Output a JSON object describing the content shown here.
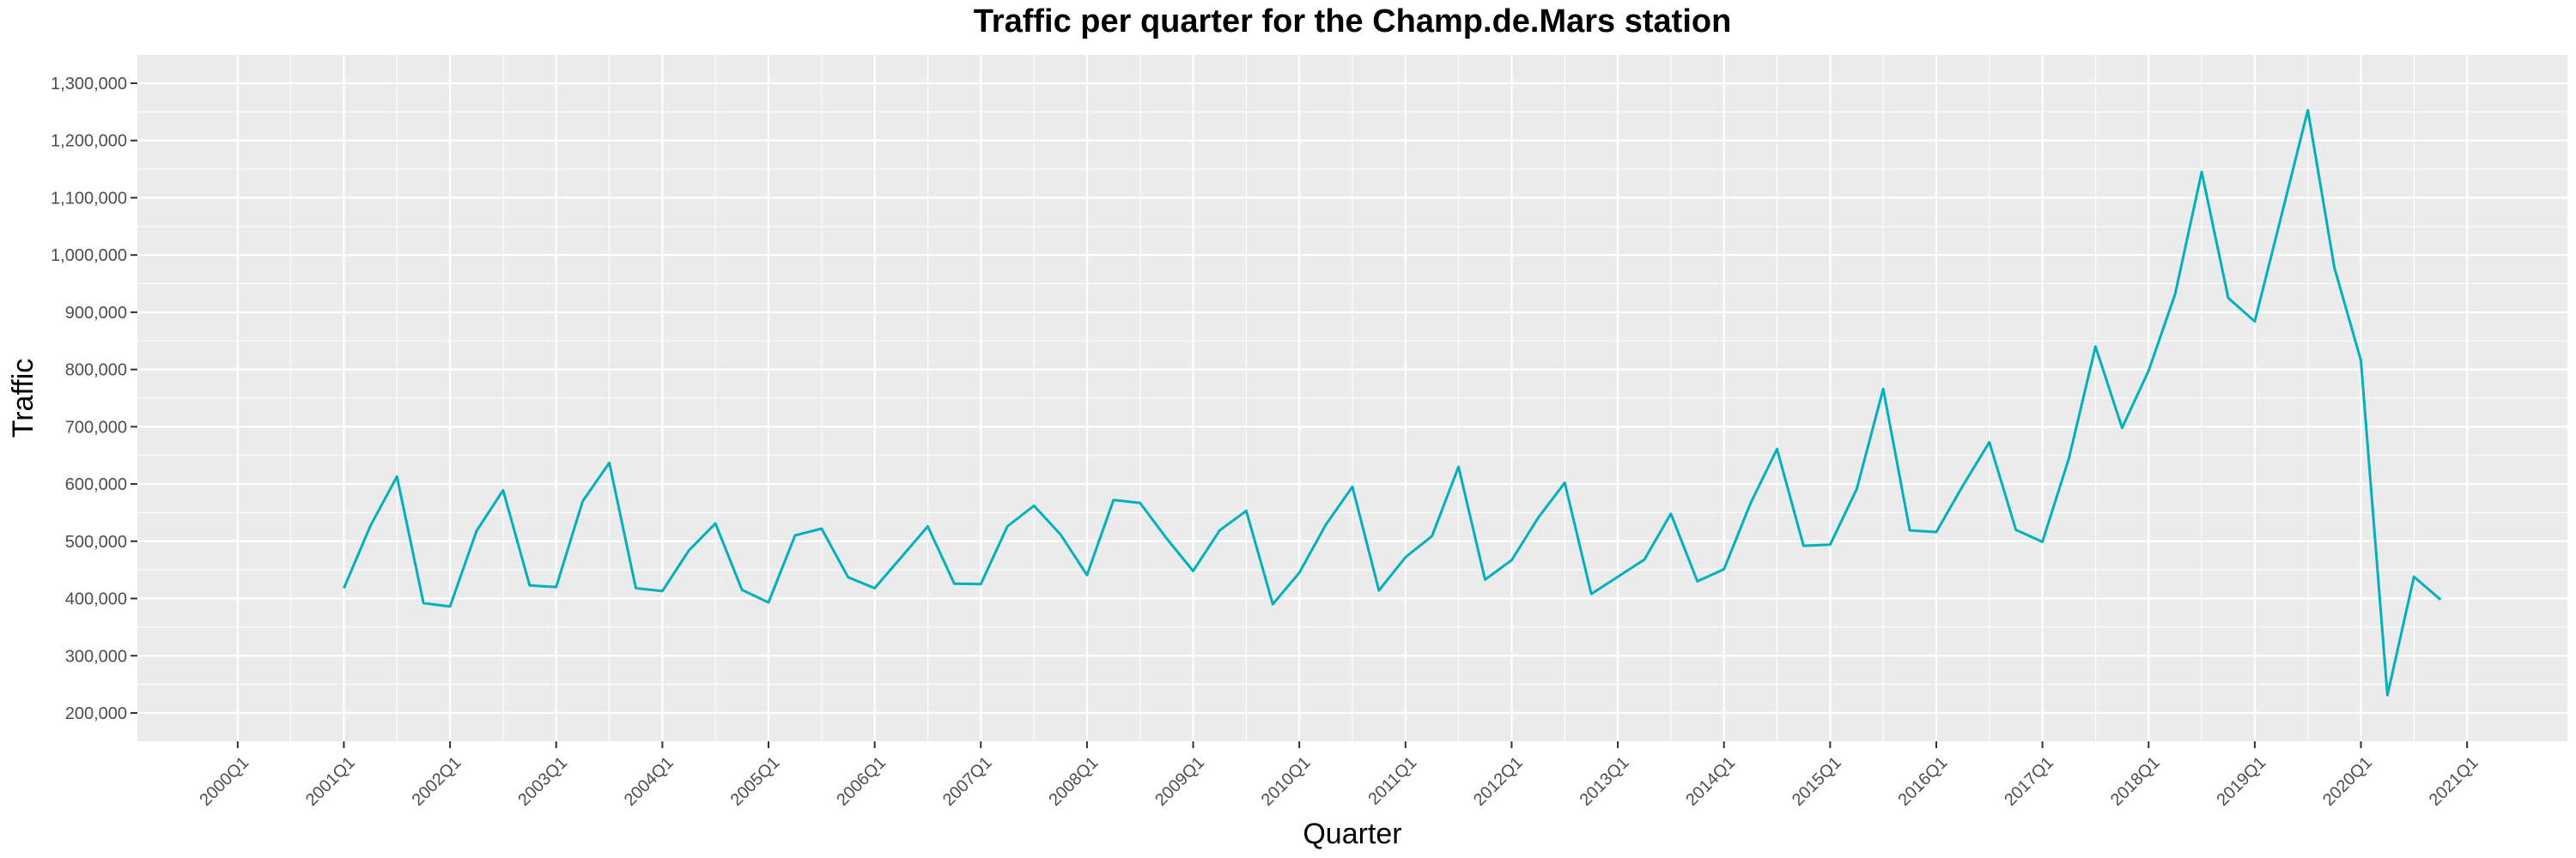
{
  "chart_data": {
    "type": "line",
    "title": "Traffic per quarter for the Champ.de.Mars station",
    "xlabel": "Quarter",
    "ylabel": "Traffic",
    "ylim": [
      200000,
      1300000
    ],
    "xlim": [
      "2000Q1",
      "2021Q1"
    ],
    "grid": true,
    "line_color": "#00B0BE",
    "background_color": "#EBEBEB",
    "grid_color": "#FFFFFF",
    "x_tick_labels": [
      "2000Q1",
      "2001Q1",
      "2002Q1",
      "2003Q1",
      "2004Q1",
      "2005Q1",
      "2006Q1",
      "2007Q1",
      "2008Q1",
      "2009Q1",
      "2010Q1",
      "2011Q1",
      "2012Q1",
      "2013Q1",
      "2014Q1",
      "2015Q1",
      "2016Q1",
      "2017Q1",
      "2018Q1",
      "2019Q1",
      "2020Q1",
      "2021Q1"
    ],
    "y_tick_labels": [
      "200,000",
      "300,000",
      "400,000",
      "500,000",
      "600,000",
      "700,000",
      "800,000",
      "900,000",
      "1,000,000",
      "1,100,000",
      "1,200,000",
      "1,300,000"
    ],
    "y_ticks": [
      200000,
      300000,
      400000,
      500000,
      600000,
      700000,
      800000,
      900000,
      1000000,
      1100000,
      1200000,
      1300000
    ],
    "series": [
      {
        "x": [
          "2001Q1",
          "2001Q2",
          "2001Q3",
          "2001Q4",
          "2002Q1",
          "2002Q2",
          "2002Q3",
          "2002Q4",
          "2003Q1",
          "2003Q2",
          "2003Q3",
          "2003Q4",
          "2004Q1",
          "2004Q2",
          "2004Q3",
          "2004Q4",
          "2005Q1",
          "2005Q2",
          "2005Q3",
          "2005Q4",
          "2006Q1",
          "2006Q2",
          "2006Q3",
          "2006Q4",
          "2007Q1",
          "2007Q2",
          "2007Q3",
          "2007Q4",
          "2008Q1",
          "2008Q2",
          "2008Q3",
          "2008Q4",
          "2009Q1",
          "2009Q2",
          "2009Q3",
          "2009Q4",
          "2010Q1",
          "2010Q2",
          "2010Q3",
          "2010Q4",
          "2011Q1",
          "2011Q2",
          "2011Q3",
          "2011Q4",
          "2012Q1",
          "2012Q2",
          "2012Q3",
          "2012Q4",
          "2013Q1",
          "2013Q2",
          "2013Q3",
          "2013Q4",
          "2014Q1",
          "2014Q2",
          "2014Q3",
          "2014Q4",
          "2015Q1",
          "2015Q2",
          "2015Q3",
          "2015Q4",
          "2016Q1",
          "2016Q2",
          "2016Q3",
          "2016Q4",
          "2017Q1",
          "2017Q2",
          "2017Q3",
          "2017Q4",
          "2018Q1",
          "2018Q2",
          "2018Q3",
          "2018Q4",
          "2019Q1",
          "2019Q2",
          "2019Q3",
          "2019Q4",
          "2020Q1",
          "2020Q2",
          "2020Q3",
          "2020Q4"
        ],
        "values": [
          418000,
          527000,
          613000,
          392000,
          386000,
          518000,
          589000,
          423000,
          420000,
          570000,
          637000,
          418000,
          413000,
          484000,
          531000,
          415000,
          393000,
          510000,
          522000,
          437000,
          418000,
          472000,
          526000,
          426000,
          425000,
          526000,
          562000,
          512000,
          441000,
          572000,
          567000,
          505000,
          448000,
          519000,
          553000,
          390000,
          445000,
          529000,
          595000,
          414000,
          472000,
          509000,
          630000,
          433000,
          467000,
          541000,
          602000,
          408000,
          438000,
          468000,
          548000,
          430000,
          451000,
          566000,
          661000,
          492000,
          494000,
          591000,
          766000,
          519000,
          516000,
          597000,
          673000,
          520000,
          499000,
          645000,
          840000,
          698000,
          798000,
          932000,
          1145000,
          925000,
          884000,
          1068000,
          1253000,
          978000,
          816000,
          231000,
          438000,
          398000
        ]
      }
    ]
  }
}
